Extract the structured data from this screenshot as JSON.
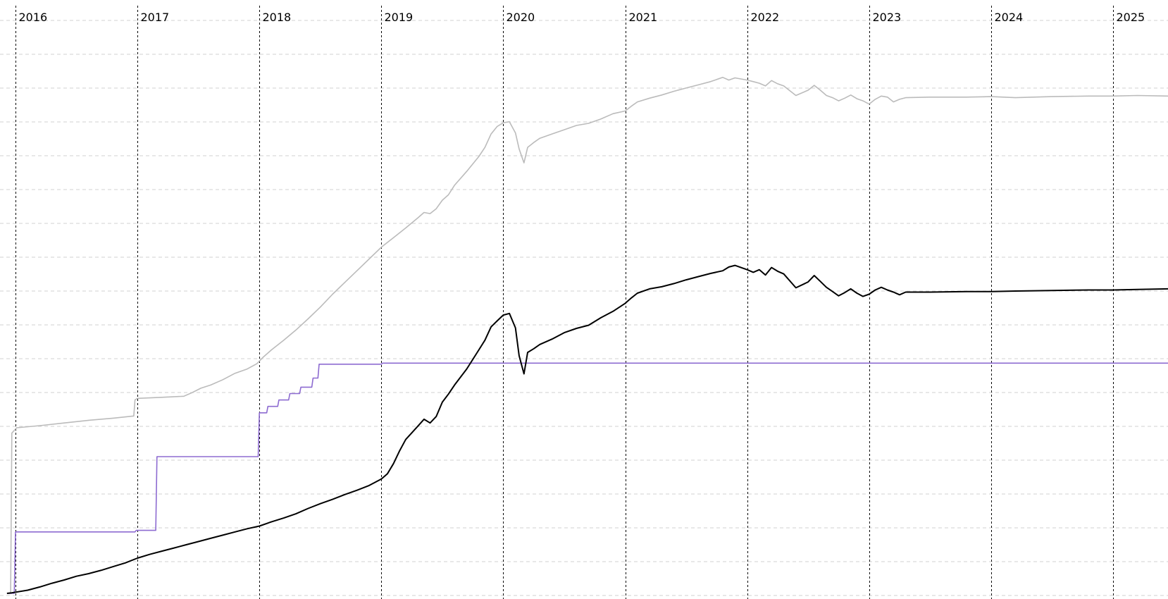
{
  "chart_data": {
    "type": "line",
    "title": "",
    "xlabel": "",
    "ylabel": "",
    "x_ticks": [
      "2016",
      "2017",
      "2018",
      "2019",
      "2020",
      "2021",
      "2022",
      "2023",
      "2024",
      "2025"
    ],
    "xlim": [
      2015.92,
      2025.46
    ],
    "ylim": [
      0,
      100
    ],
    "grid": {
      "horizontal": true,
      "vertical": true
    },
    "legend": "none",
    "series": [
      {
        "color": "#bbbbbb",
        "points": [
          [
            2015.93,
            0
          ],
          [
            2015.96,
            0
          ],
          [
            2015.97,
            30
          ],
          [
            2016.01,
            31
          ],
          [
            2016.2,
            31.4
          ],
          [
            2016.4,
            31.9
          ],
          [
            2016.6,
            32.4
          ],
          [
            2016.8,
            32.8
          ],
          [
            2016.97,
            33.2
          ],
          [
            2016.98,
            36.2
          ],
          [
            2017.0,
            36.5
          ],
          [
            2017.2,
            36.7
          ],
          [
            2017.38,
            36.9
          ],
          [
            2017.45,
            37.6
          ],
          [
            2017.52,
            38.4
          ],
          [
            2017.6,
            39.0
          ],
          [
            2017.7,
            40.0
          ],
          [
            2017.8,
            41.2
          ],
          [
            2017.9,
            42.0
          ],
          [
            2017.98,
            43.0
          ],
          [
            2018.03,
            44.2
          ],
          [
            2018.1,
            45.6
          ],
          [
            2018.2,
            47.4
          ],
          [
            2018.3,
            49.3
          ],
          [
            2018.4,
            51.4
          ],
          [
            2018.5,
            53.6
          ],
          [
            2018.6,
            56.0
          ],
          [
            2018.7,
            58.2
          ],
          [
            2018.8,
            60.4
          ],
          [
            2018.9,
            62.6
          ],
          [
            2019.0,
            64.8
          ],
          [
            2019.1,
            66.6
          ],
          [
            2019.2,
            68.4
          ],
          [
            2019.3,
            70.3
          ],
          [
            2019.35,
            71.3
          ],
          [
            2019.4,
            71.1
          ],
          [
            2019.45,
            72.0
          ],
          [
            2019.5,
            73.6
          ],
          [
            2019.55,
            74.6
          ],
          [
            2019.6,
            76.4
          ],
          [
            2019.7,
            79.0
          ],
          [
            2019.8,
            81.8
          ],
          [
            2019.85,
            83.5
          ],
          [
            2019.9,
            86.0
          ],
          [
            2019.95,
            87.4
          ],
          [
            2020.0,
            88.1
          ],
          [
            2020.05,
            88.3
          ],
          [
            2020.1,
            86.2
          ],
          [
            2020.13,
            83.2
          ],
          [
            2020.17,
            80.6
          ],
          [
            2020.2,
            83.5
          ],
          [
            2020.25,
            84.4
          ],
          [
            2020.3,
            85.2
          ],
          [
            2020.4,
            86.0
          ],
          [
            2020.5,
            86.8
          ],
          [
            2020.6,
            87.6
          ],
          [
            2020.7,
            88.0
          ],
          [
            2020.8,
            88.8
          ],
          [
            2020.9,
            89.8
          ],
          [
            2021.0,
            90.3
          ],
          [
            2021.05,
            91.2
          ],
          [
            2021.1,
            92.0
          ],
          [
            2021.2,
            92.7
          ],
          [
            2021.3,
            93.3
          ],
          [
            2021.4,
            94.0
          ],
          [
            2021.5,
            94.6
          ],
          [
            2021.6,
            95.2
          ],
          [
            2021.7,
            95.8
          ],
          [
            2021.8,
            96.6
          ],
          [
            2021.85,
            96.1
          ],
          [
            2021.9,
            96.5
          ],
          [
            2022.0,
            96.1
          ],
          [
            2022.05,
            95.8
          ],
          [
            2022.1,
            95.5
          ],
          [
            2022.15,
            95.0
          ],
          [
            2022.2,
            96.0
          ],
          [
            2022.25,
            95.4
          ],
          [
            2022.3,
            95.0
          ],
          [
            2022.4,
            93.2
          ],
          [
            2022.5,
            94.2
          ],
          [
            2022.55,
            95.1
          ],
          [
            2022.6,
            94.2
          ],
          [
            2022.65,
            93.2
          ],
          [
            2022.7,
            92.8
          ],
          [
            2022.75,
            92.2
          ],
          [
            2022.8,
            92.7
          ],
          [
            2022.85,
            93.3
          ],
          [
            2022.9,
            92.6
          ],
          [
            2022.95,
            92.2
          ],
          [
            2023.0,
            91.6
          ],
          [
            2023.05,
            92.5
          ],
          [
            2023.1,
            93.1
          ],
          [
            2023.15,
            92.9
          ],
          [
            2023.2,
            92.0
          ],
          [
            2023.25,
            92.5
          ],
          [
            2023.3,
            92.8
          ],
          [
            2023.5,
            92.9
          ],
          [
            2023.8,
            92.9
          ],
          [
            2024.0,
            93.0
          ],
          [
            2024.2,
            92.8
          ],
          [
            2024.5,
            93.0
          ],
          [
            2024.8,
            93.1
          ],
          [
            2025.0,
            93.1
          ],
          [
            2025.2,
            93.2
          ],
          [
            2025.46,
            93.1
          ]
        ]
      },
      {
        "color": "#8d6bd1",
        "points": [
          [
            2015.93,
            0
          ],
          [
            2015.99,
            0
          ],
          [
            2016.0,
            11.5
          ],
          [
            2016.98,
            11.5
          ],
          [
            2016.99,
            11.8
          ],
          [
            2017.15,
            11.8
          ],
          [
            2017.16,
            25.6
          ],
          [
            2017.99,
            25.6
          ],
          [
            2018.0,
            33.8
          ],
          [
            2018.06,
            33.8
          ],
          [
            2018.07,
            35.0
          ],
          [
            2018.15,
            35.0
          ],
          [
            2018.16,
            36.2
          ],
          [
            2018.24,
            36.2
          ],
          [
            2018.25,
            37.4
          ],
          [
            2018.33,
            37.4
          ],
          [
            2018.34,
            38.6
          ],
          [
            2018.43,
            38.6
          ],
          [
            2018.44,
            40.3
          ],
          [
            2018.48,
            40.3
          ],
          [
            2018.49,
            42.9
          ],
          [
            2019.0,
            42.9
          ],
          [
            2019.01,
            43.1
          ],
          [
            2025.46,
            43.1
          ]
        ]
      },
      {
        "color": "#000000",
        "points": [
          [
            2015.93,
            0
          ],
          [
            2015.97,
            0.1
          ],
          [
            2016.1,
            0.6
          ],
          [
            2016.2,
            1.2
          ],
          [
            2016.3,
            1.9
          ],
          [
            2016.4,
            2.5
          ],
          [
            2016.5,
            3.2
          ],
          [
            2016.6,
            3.7
          ],
          [
            2016.7,
            4.3
          ],
          [
            2016.8,
            5.0
          ],
          [
            2016.9,
            5.7
          ],
          [
            2017.0,
            6.6
          ],
          [
            2017.1,
            7.3
          ],
          [
            2017.2,
            7.9
          ],
          [
            2017.3,
            8.5
          ],
          [
            2017.4,
            9.1
          ],
          [
            2017.5,
            9.7
          ],
          [
            2017.6,
            10.3
          ],
          [
            2017.7,
            10.9
          ],
          [
            2017.8,
            11.5
          ],
          [
            2017.9,
            12.1
          ],
          [
            2018.0,
            12.6
          ],
          [
            2018.1,
            13.4
          ],
          [
            2018.2,
            14.1
          ],
          [
            2018.3,
            14.9
          ],
          [
            2018.4,
            15.9
          ],
          [
            2018.5,
            16.8
          ],
          [
            2018.6,
            17.6
          ],
          [
            2018.7,
            18.5
          ],
          [
            2018.8,
            19.3
          ],
          [
            2018.9,
            20.2
          ],
          [
            2019.0,
            21.4
          ],
          [
            2019.05,
            22.4
          ],
          [
            2019.1,
            24.3
          ],
          [
            2019.15,
            26.7
          ],
          [
            2019.2,
            28.8
          ],
          [
            2019.3,
            31.3
          ],
          [
            2019.35,
            32.6
          ],
          [
            2019.4,
            31.9
          ],
          [
            2019.45,
            33.1
          ],
          [
            2019.5,
            35.8
          ],
          [
            2019.55,
            37.3
          ],
          [
            2019.6,
            39.0
          ],
          [
            2019.7,
            42.0
          ],
          [
            2019.8,
            45.6
          ],
          [
            2019.85,
            47.4
          ],
          [
            2019.9,
            49.9
          ],
          [
            2019.95,
            51.0
          ],
          [
            2020.0,
            52.1
          ],
          [
            2020.05,
            52.4
          ],
          [
            2020.1,
            49.7
          ],
          [
            2020.13,
            44.5
          ],
          [
            2020.17,
            41.1
          ],
          [
            2020.2,
            45.1
          ],
          [
            2020.25,
            45.8
          ],
          [
            2020.3,
            46.6
          ],
          [
            2020.4,
            47.6
          ],
          [
            2020.5,
            48.8
          ],
          [
            2020.6,
            49.6
          ],
          [
            2020.7,
            50.2
          ],
          [
            2020.8,
            51.6
          ],
          [
            2020.9,
            52.8
          ],
          [
            2021.0,
            54.3
          ],
          [
            2021.05,
            55.3
          ],
          [
            2021.1,
            56.2
          ],
          [
            2021.2,
            57.0
          ],
          [
            2021.3,
            57.4
          ],
          [
            2021.4,
            58.0
          ],
          [
            2021.5,
            58.7
          ],
          [
            2021.6,
            59.3
          ],
          [
            2021.7,
            59.9
          ],
          [
            2021.8,
            60.4
          ],
          [
            2021.85,
            61.1
          ],
          [
            2021.9,
            61.4
          ],
          [
            2022.0,
            60.6
          ],
          [
            2022.05,
            60.1
          ],
          [
            2022.1,
            60.6
          ],
          [
            2022.15,
            59.6
          ],
          [
            2022.2,
            61.0
          ],
          [
            2022.25,
            60.3
          ],
          [
            2022.3,
            59.8
          ],
          [
            2022.4,
            57.2
          ],
          [
            2022.5,
            58.3
          ],
          [
            2022.55,
            59.5
          ],
          [
            2022.6,
            58.4
          ],
          [
            2022.65,
            57.3
          ],
          [
            2022.7,
            56.5
          ],
          [
            2022.75,
            55.7
          ],
          [
            2022.8,
            56.3
          ],
          [
            2022.85,
            57.0
          ],
          [
            2022.9,
            56.2
          ],
          [
            2022.95,
            55.6
          ],
          [
            2023.0,
            56.0
          ],
          [
            2023.05,
            56.8
          ],
          [
            2023.1,
            57.3
          ],
          [
            2023.15,
            56.8
          ],
          [
            2023.2,
            56.4
          ],
          [
            2023.25,
            55.9
          ],
          [
            2023.3,
            56.4
          ],
          [
            2023.5,
            56.4
          ],
          [
            2023.8,
            56.5
          ],
          [
            2024.0,
            56.5
          ],
          [
            2024.2,
            56.6
          ],
          [
            2024.5,
            56.7
          ],
          [
            2024.8,
            56.8
          ],
          [
            2025.0,
            56.8
          ],
          [
            2025.2,
            56.9
          ],
          [
            2025.46,
            57.0
          ]
        ]
      }
    ]
  }
}
